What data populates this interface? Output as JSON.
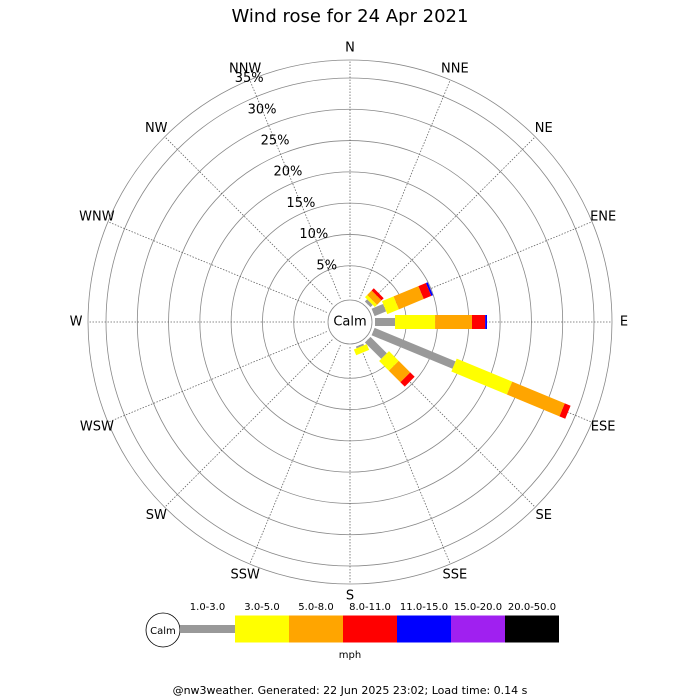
{
  "chart_data": {
    "type": "windrose",
    "title": "Wind rose for 24 Apr 2021",
    "directions": [
      "N",
      "NNE",
      "NE",
      "ENE",
      "E",
      "ESE",
      "SE",
      "SSE",
      "S",
      "SSW",
      "SW",
      "WSW",
      "W",
      "WNW",
      "NW",
      "NNW"
    ],
    "calm_label": "Calm",
    "rlim": [
      0,
      35
    ],
    "rticks": [
      {
        "value": 5,
        "label": "5%"
      },
      {
        "value": 10,
        "label": "10%"
      },
      {
        "value": 15,
        "label": "15%"
      },
      {
        "value": 20,
        "label": "20%"
      },
      {
        "value": 25,
        "label": "25%"
      },
      {
        "value": 30,
        "label": "30%"
      },
      {
        "value": 35,
        "label": "35%"
      }
    ],
    "series": [
      {
        "name": "1.0-3.0",
        "color": "#999999",
        "values": [
          0,
          0,
          0.5,
          2,
          3.2,
          14,
          3.7,
          0.3,
          0,
          0,
          0,
          0,
          0,
          0,
          0,
          0
        ]
      },
      {
        "name": "3.0-5.0",
        "color": "#ffff00",
        "values": [
          0,
          0,
          0.5,
          2,
          6.4,
          9.6,
          2.2,
          1,
          0,
          0,
          0,
          0,
          0,
          0,
          0,
          0
        ]
      },
      {
        "name": "5.0-8.0",
        "color": "#ffa500",
        "values": [
          0,
          0,
          1,
          4.3,
          5.9,
          9.1,
          2.6,
          0,
          0,
          0,
          0,
          0,
          0,
          0,
          0,
          0
        ]
      },
      {
        "name": "8.0-11.0",
        "color": "#ff0000",
        "values": [
          0,
          0,
          0.5,
          1.3,
          2.1,
          1,
          1,
          0,
          0,
          0,
          0,
          0,
          0,
          0,
          0,
          0
        ]
      },
      {
        "name": "11.0-15.0",
        "color": "#0000ff",
        "values": [
          0,
          0,
          0,
          0.3,
          0.3,
          0,
          0,
          0,
          0,
          0,
          0,
          0,
          0,
          0,
          0,
          0
        ]
      },
      {
        "name": "15.0-20.0",
        "color": "#a020f0",
        "values": [
          0,
          0,
          0,
          0,
          0,
          0,
          0,
          0,
          0,
          0,
          0,
          0,
          0,
          0,
          0,
          0
        ]
      },
      {
        "name": "20.0-50.0",
        "color": "#000000",
        "values": [
          0,
          0,
          0,
          0,
          0,
          0,
          0,
          0,
          0,
          0,
          0,
          0,
          0,
          0,
          0,
          0
        ]
      }
    ],
    "legend_unit": "mph",
    "footer": "@nw3weather. Generated: 22 Jun 2025 23:02; Load time: 0.14 s"
  }
}
